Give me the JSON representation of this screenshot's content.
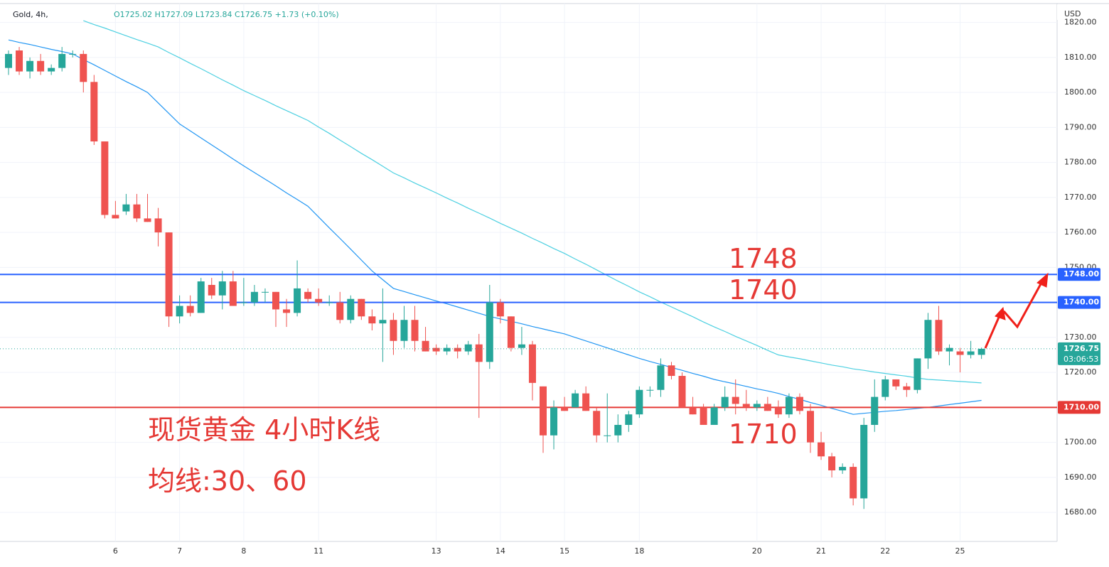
{
  "chart_data": {
    "type": "candlestick",
    "symbol": "Gold, 4h,",
    "ohlc_text": "O1725.02 H1727.09 L1723.84 C1726.75 +1.73 (+0.10%)",
    "currency": "USD",
    "categories": [
      null,
      null,
      null,
      null,
      null,
      null,
      null,
      null,
      null,
      null,
      "6",
      null,
      null,
      null,
      null,
      null,
      "7",
      null,
      null,
      null,
      null,
      null,
      "8",
      null,
      null,
      null,
      null,
      null,
      null,
      "11",
      null,
      null,
      null,
      null,
      null,
      null,
      null,
      null,
      null,
      null,
      "13",
      null,
      null,
      null,
      null,
      null,
      "14",
      null,
      null,
      null,
      null,
      null,
      "15",
      null,
      null,
      null,
      null,
      null,
      null,
      "18",
      null,
      null,
      null,
      null,
      null,
      null,
      null,
      null,
      null,
      null,
      "20",
      null,
      null,
      null,
      null,
      null,
      "21",
      null,
      null,
      null,
      null,
      null,
      "22",
      null,
      null,
      null,
      null,
      null,
      null,
      "25",
      null,
      null
    ],
    "open": [
      1807,
      1812,
      1806,
      1809,
      1806,
      1807,
      1811,
      1811,
      1803,
      1786,
      1765,
      1766,
      1768,
      1764,
      1764,
      1760,
      1736,
      1739,
      1737,
      1745,
      1742,
      1746,
      1740,
      1740,
      1743,
      1743,
      1738,
      1737,
      1743,
      1741,
      1740,
      1740,
      1735,
      1741,
      1736,
      1734,
      1735,
      1729,
      1735,
      1729,
      1727,
      1726,
      1727,
      1726,
      1728,
      1723,
      1740,
      1736,
      1727,
      1728,
      1716,
      1702,
      1710,
      1710,
      1714,
      1709,
      1702,
      1702,
      1705,
      1708,
      1715,
      1715,
      1722,
      1719,
      1710,
      1710,
      1705,
      1710,
      1713,
      1711,
      1710,
      1711,
      1710,
      1708,
      1713,
      1709,
      1700,
      1696,
      1692,
      1693,
      1684,
      1705,
      1713,
      1718,
      1716,
      1715,
      1724,
      1735,
      1726,
      1726,
      1725,
      1725.02
    ],
    "high": [
      1812,
      1813,
      1810,
      1811,
      1808,
      1813,
      1812,
      1812,
      1805,
      1786,
      1769,
      1771,
      1771,
      1771,
      1767,
      1760,
      1742,
      1742,
      1747,
      1747,
      1749,
      1749,
      1747,
      1745,
      1744,
      1743,
      1741,
      1752,
      1744,
      1744,
      1742,
      1743,
      1742,
      1741,
      1738,
      1744,
      1737,
      1739,
      1739,
      1733,
      1728,
      1728,
      1728,
      1729,
      1731,
      1745,
      1741,
      1736,
      1733,
      1729,
      1716,
      1712,
      1713,
      1715,
      1716,
      1710,
      1714,
      1708,
      1709,
      1716,
      1716,
      1724,
      1723,
      1720,
      1713,
      1711,
      1711,
      1716,
      1718,
      1715,
      1712,
      1713,
      1712,
      1714,
      1714,
      1711,
      1703,
      1697,
      1694,
      1694,
      1707,
      1718,
      1719,
      1718,
      1717,
      1724,
      1737,
      1739,
      1728,
      1727,
      1729,
      1727.09
    ],
    "low": [
      1805,
      1805,
      1804,
      1805,
      1805,
      1806,
      1810,
      1800,
      1785,
      1764,
      1764,
      1765,
      1763,
      1763,
      1756,
      1733,
      1734,
      1736,
      1737,
      1741,
      1738,
      1739,
      1739,
      1739,
      1740,
      1733,
      1733,
      1736,
      1740,
      1739,
      1739,
      1734,
      1734,
      1735,
      1732,
      1723,
      1725,
      1727,
      1726,
      1726,
      1725,
      1725,
      1724,
      1725,
      1707,
      1721,
      1734,
      1726,
      1725,
      1712,
      1697,
      1698,
      1709,
      1710,
      1709,
      1700,
      1700,
      1700,
      1703,
      1707,
      1713,
      1713,
      1718,
      1710,
      1708,
      1705,
      1705,
      1709,
      1708,
      1709,
      1709,
      1709,
      1707,
      1707,
      1708,
      1697,
      1695,
      1690,
      1691,
      1682,
      1681,
      1703,
      1712,
      1715,
      1713,
      1714,
      1721,
      1725,
      1722,
      1720,
      1724,
      1723.84
    ],
    "close": [
      1811,
      1806,
      1809,
      1806,
      1807,
      1811,
      1811,
      1803,
      1786,
      1765,
      1764,
      1768,
      1764,
      1763,
      1760,
      1736,
      1739,
      1737,
      1746,
      1742,
      1746,
      1739,
      1740,
      1743,
      1743,
      1738,
      1737,
      1744,
      1741,
      1740,
      1740,
      1735,
      1741,
      1736,
      1734,
      1735,
      1729,
      1735,
      1729,
      1726,
      1726,
      1727,
      1726,
      1728,
      1723,
      1740,
      1736,
      1727,
      1728,
      1717,
      1702,
      1710,
      1709,
      1714,
      1709,
      1702,
      1702,
      1705,
      1708,
      1715,
      1715,
      1722,
      1719,
      1710,
      1708,
      1705,
      1710,
      1713,
      1711,
      1710,
      1711,
      1709,
      1708,
      1713,
      1709,
      1700,
      1696,
      1692,
      1693,
      1684,
      1705,
      1713,
      1718,
      1716,
      1715,
      1724,
      1735,
      1726,
      1727,
      1725,
      1726,
      1726.75
    ],
    "up_color": "#26a69a",
    "down_color": "#ef5350",
    "lines": [
      {
        "color": "#2196f3",
        "values": [
          1815,
          1814.3,
          1813.7,
          1813,
          1812.3,
          1811.7,
          1811,
          1809.4,
          1807.9,
          1806.3,
          1804.7,
          1803.1,
          1801.6,
          1800,
          1797,
          1794,
          1791,
          1789,
          1787,
          1785,
          1783,
          1781,
          1779,
          1777.1,
          1775.2,
          1773.3,
          1771.3,
          1769.4,
          1767.5,
          1764.4,
          1761.3,
          1758.3,
          1755.2,
          1752.1,
          1749,
          1746.5,
          1744,
          1743.1,
          1742.2,
          1741.3,
          1740.4,
          1739.6,
          1738.7,
          1737.8,
          1736.9,
          1736,
          1735.3,
          1734.6,
          1733.9,
          1733.1,
          1732.4,
          1731.7,
          1731,
          1730,
          1729,
          1728,
          1727,
          1726,
          1725,
          1724,
          1723.1,
          1722.3,
          1721.4,
          1720.6,
          1719.7,
          1718.9,
          1718,
          1717.3,
          1716.7,
          1716,
          1715.3,
          1714.7,
          1714,
          1713.1,
          1712.3,
          1711.4,
          1710.6,
          1709.7,
          1708.9,
          1708,
          1708.3,
          1708.6,
          1708.9,
          1709.1,
          1709.4,
          1709.7,
          1710,
          1710.4,
          1710.8,
          1711.2,
          1711.6,
          1712
        ]
      },
      {
        "color": "#4dd0e1",
        "values": [
          null,
          null,
          null,
          null,
          null,
          null,
          null,
          1820.5,
          1819.4,
          1818.4,
          1817.3,
          1816.2,
          1815.1,
          1814.1,
          1813,
          1811.4,
          1809.9,
          1808.3,
          1806.8,
          1805.2,
          1803.6,
          1802.1,
          1800.5,
          1799.1,
          1797.7,
          1796.2,
          1794.8,
          1793.4,
          1792,
          1790.1,
          1788.3,
          1786.4,
          1784.5,
          1782.6,
          1780.8,
          1778.9,
          1777,
          1775.6,
          1774.1,
          1772.7,
          1771.3,
          1769.8,
          1768.4,
          1766.9,
          1765.5,
          1764.1,
          1762.6,
          1761.2,
          1759.8,
          1758.3,
          1756.9,
          1755.4,
          1754,
          1752.4,
          1750.9,
          1749.3,
          1747.7,
          1746.1,
          1744.6,
          1743,
          1741.6,
          1740.1,
          1738.7,
          1737.3,
          1735.9,
          1734.4,
          1733,
          1731.7,
          1730.3,
          1729,
          1727.7,
          1726.3,
          1725,
          1724.4,
          1723.9,
          1723.3,
          1722.7,
          1722.1,
          1721.6,
          1721,
          1720.6,
          1720.1,
          1719.7,
          1719.3,
          1718.9,
          1718.4,
          1718,
          1717.8,
          1717.6,
          1717.4,
          1717.2,
          1717
        ]
      }
    ],
    "levels": [
      {
        "value": 1748,
        "label": "1748.00",
        "color": "#2962ff"
      },
      {
        "value": 1740,
        "label": "1740.00",
        "color": "#2962ff"
      },
      {
        "value": 1710,
        "label": "1710.00",
        "color": "#e53935"
      }
    ],
    "last_price": {
      "value": 1726.75,
      "label": "1726.75"
    },
    "countdown": "03:06:53",
    "annotations": [
      "1748",
      "1740",
      "1710",
      "现货黄金 4小时K线",
      "均线:30、60"
    ],
    "ylim": [
      1671.7,
      1825.4
    ],
    "yticks": [
      {
        "value": 1680,
        "label": "1680.00"
      },
      {
        "value": 1690,
        "label": "1690.00"
      },
      {
        "value": 1700,
        "label": "1700.00"
      },
      {
        "value": 1710,
        "label": "1710.00"
      },
      {
        "value": 1720,
        "label": "1720.00"
      },
      {
        "value": 1730,
        "label": "1730.00"
      },
      {
        "value": 1740,
        "label": "1740.00"
      },
      {
        "value": 1750,
        "label": "1750.00"
      },
      {
        "value": 1760,
        "label": "1760.00"
      },
      {
        "value": 1770,
        "label": "1770.00"
      },
      {
        "value": 1780,
        "label": "1780.00"
      },
      {
        "value": 1790,
        "label": "1790.00"
      },
      {
        "value": 1800,
        "label": "1800.00"
      },
      {
        "value": 1810,
        "label": "1810.00"
      },
      {
        "value": 1820,
        "label": "1820.00"
      }
    ],
    "grid": true
  }
}
